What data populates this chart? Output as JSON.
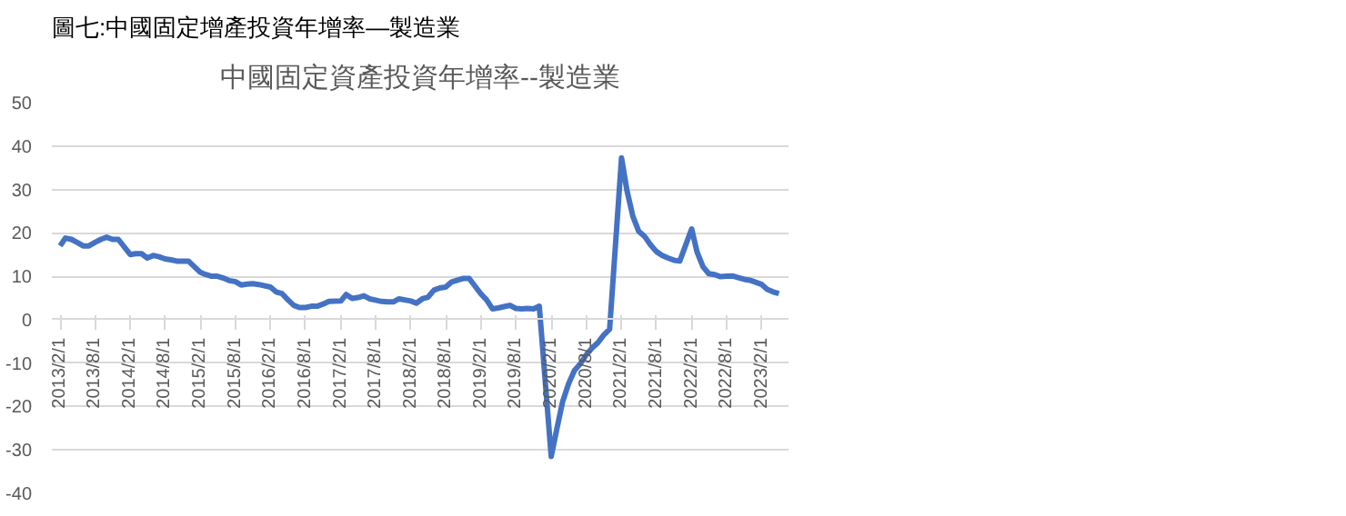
{
  "chart_data": {
    "type": "line",
    "title": "中國固定資產投資年增率--製造業",
    "annotations": [
      "圖七:中國固定增產投資年增率—製造業"
    ],
    "x": [
      "2013-02",
      "2013-03",
      "2013-04",
      "2013-05",
      "2013-06",
      "2013-07",
      "2013-08",
      "2013-09",
      "2013-10",
      "2013-11",
      "2013-12",
      "2014-02",
      "2014-03",
      "2014-04",
      "2014-05",
      "2014-06",
      "2014-07",
      "2014-08",
      "2014-09",
      "2014-10",
      "2014-11",
      "2014-12",
      "2015-02",
      "2015-03",
      "2015-04",
      "2015-05",
      "2015-06",
      "2015-07",
      "2015-08",
      "2015-09",
      "2015-10",
      "2015-11",
      "2015-12",
      "2016-02",
      "2016-03",
      "2016-04",
      "2016-05",
      "2016-06",
      "2016-07",
      "2016-08",
      "2016-09",
      "2016-10",
      "2016-11",
      "2016-12",
      "2017-02",
      "2017-03",
      "2017-04",
      "2017-05",
      "2017-06",
      "2017-07",
      "2017-08",
      "2017-09",
      "2017-10",
      "2017-11",
      "2017-12",
      "2018-02",
      "2018-03",
      "2018-04",
      "2018-05",
      "2018-06",
      "2018-07",
      "2018-08",
      "2018-09",
      "2018-10",
      "2018-11",
      "2018-12",
      "2019-02",
      "2019-03",
      "2019-04",
      "2019-05",
      "2019-06",
      "2019-07",
      "2019-08",
      "2019-09",
      "2019-10",
      "2019-11",
      "2019-12",
      "2020-02",
      "2020-03",
      "2020-04",
      "2020-05",
      "2020-06",
      "2020-07",
      "2020-08",
      "2020-09",
      "2020-10",
      "2020-11",
      "2020-12",
      "2021-02",
      "2021-03",
      "2021-04",
      "2021-05",
      "2021-06",
      "2021-07",
      "2021-08",
      "2021-09",
      "2021-10",
      "2021-11",
      "2021-12",
      "2022-02",
      "2022-03",
      "2022-04",
      "2022-05",
      "2022-06",
      "2022-07",
      "2022-08",
      "2022-09",
      "2022-10",
      "2022-11",
      "2022-12",
      "2023-02",
      "2023-03",
      "2023-04",
      "2023-05"
    ],
    "series": [
      {
        "color": "#4472c4",
        "values": [
          17,
          18.8,
          18.5,
          17.8,
          17,
          17,
          17.8,
          18.5,
          19,
          18.5,
          18.5,
          15,
          15.2,
          15.2,
          14.2,
          14.8,
          14.5,
          14,
          13.8,
          13.5,
          13.5,
          13.5,
          10.9,
          10.4,
          10,
          10,
          9.6,
          9,
          8.8,
          8,
          8.2,
          8.3,
          8.1,
          7.5,
          6.4,
          6,
          4.6,
          3.3,
          2.8,
          2.8,
          3.1,
          3.1,
          3.6,
          4.2,
          4.3,
          5.8,
          4.9,
          5.1,
          5.5,
          4.8,
          4.5,
          4.2,
          4.1,
          4.1,
          4.8,
          4.3,
          3.8,
          4.8,
          5.2,
          6.8,
          7.3,
          7.5,
          8.7,
          9.1,
          9.5,
          9.5,
          5.9,
          4.6,
          2.5,
          2.7,
          3,
          3.3,
          2.6,
          2.5,
          2.6,
          2.5,
          3.1,
          -31.5,
          -25.2,
          -18.8,
          -14.8,
          -11.7,
          -10.2,
          -8.1,
          -6.5,
          -5.3,
          -3.5,
          -2.2,
          37.3,
          29.8,
          23.8,
          20.4,
          19.2,
          17.3,
          15.7,
          14.8,
          14.2,
          13.7,
          13.5,
          20.9,
          15.6,
          12.2,
          10.6,
          10.4,
          9.9,
          10,
          10.1,
          9.7,
          9.3,
          9.1,
          8.1,
          7,
          6.4,
          6
        ]
      }
    ],
    "xlim": [
      "2012-12-20",
      "2023-06-20"
    ],
    "xticks": [
      {
        "value": "2013-02-01",
        "label": "2013/2/1"
      },
      {
        "value": "2013-08-01",
        "label": "2013/8/1"
      },
      {
        "value": "2014-02-01",
        "label": "2014/2/1"
      },
      {
        "value": "2014-08-01",
        "label": "2014/8/1"
      },
      {
        "value": "2015-02-01",
        "label": "2015/2/1"
      },
      {
        "value": "2015-08-01",
        "label": "2015/8/1"
      },
      {
        "value": "2016-02-01",
        "label": "2016/2/1"
      },
      {
        "value": "2016-08-01",
        "label": "2016/8/1"
      },
      {
        "value": "2017-02-01",
        "label": "2017/2/1"
      },
      {
        "value": "2017-08-01",
        "label": "2017/8/1"
      },
      {
        "value": "2018-02-01",
        "label": "2018/2/1"
      },
      {
        "value": "2018-08-01",
        "label": "2018/8/1"
      },
      {
        "value": "2019-02-01",
        "label": "2019/2/1"
      },
      {
        "value": "2019-08-01",
        "label": "2019/8/1"
      },
      {
        "value": "2020-02-01",
        "label": "2020/2/1"
      },
      {
        "value": "2020-08-01",
        "label": "2020/8/1"
      },
      {
        "value": "2021-02-01",
        "label": "2021/2/1"
      },
      {
        "value": "2021-08-01",
        "label": "2021/8/1"
      },
      {
        "value": "2022-02-01",
        "label": "2022/2/1"
      },
      {
        "value": "2022-08-01",
        "label": "2022/8/1"
      },
      {
        "value": "2023-02-01",
        "label": "2023/2/1"
      }
    ],
    "ylim": [
      -40,
      50
    ],
    "yticks": [
      -40,
      -30,
      -20,
      -10,
      0,
      10,
      20,
      30,
      40,
      50
    ],
    "grid": "y",
    "marker": "none",
    "line_style": "solid"
  }
}
